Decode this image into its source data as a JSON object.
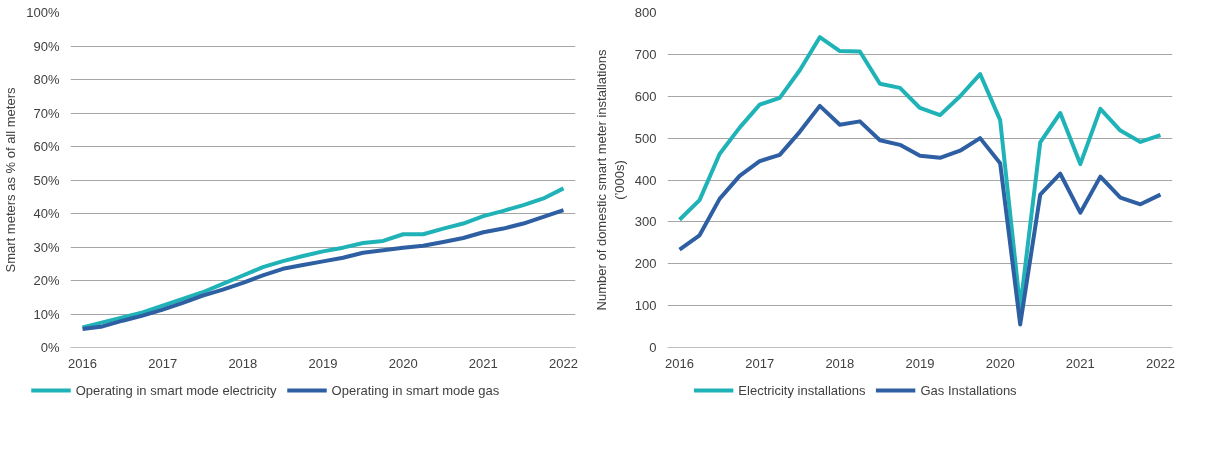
{
  "chart_data": [
    {
      "type": "line",
      "ylabel": "Smart meters as % of all meters",
      "x": [
        2016,
        2016.25,
        2016.5,
        2016.75,
        2017,
        2017.25,
        2017.5,
        2017.75,
        2018,
        2018.25,
        2018.5,
        2018.75,
        2019,
        2019.25,
        2019.5,
        2019.75,
        2020,
        2020.25,
        2020.5,
        2020.75,
        2021,
        2021.25,
        2021.5,
        2021.75,
        2022
      ],
      "series": [
        {
          "name": "Operating in smart mode electricity",
          "color": "#1fb3b8",
          "values": [
            6,
            7.5,
            9,
            10.5,
            12.5,
            14.5,
            16.5,
            19,
            21.5,
            24,
            25.8,
            27.3,
            28.7,
            29.8,
            31.2,
            31.8,
            33.8,
            33.8,
            35.5,
            37,
            39.2,
            40.8,
            42.5,
            44.5,
            47.5
          ]
        },
        {
          "name": "Operating in smart mode gas",
          "color": "#2e5fa3",
          "values": [
            5.5,
            6.3,
            8,
            9.5,
            11.3,
            13.3,
            15.5,
            17.3,
            19.3,
            21.5,
            23.5,
            24.6,
            25.7,
            26.8,
            28.3,
            29,
            29.8,
            30.4,
            31.5,
            32.7,
            34.4,
            35.5,
            37,
            39,
            41
          ]
        }
      ],
      "xlim": [
        2015.85,
        2022.15
      ],
      "xticks": [
        2016,
        2017,
        2018,
        2019,
        2020,
        2021,
        2022
      ],
      "ylim": [
        0,
        100
      ],
      "yticks": [
        {
          "value": 0,
          "label": "0%"
        },
        {
          "value": 10,
          "label": "10%"
        },
        {
          "value": 20,
          "label": "20%"
        },
        {
          "value": 30,
          "label": "30%"
        },
        {
          "value": 40,
          "label": "40%"
        },
        {
          "value": 50,
          "label": "50%"
        },
        {
          "value": 60,
          "label": "60%"
        },
        {
          "value": 70,
          "label": "70%"
        },
        {
          "value": 80,
          "label": "80%"
        },
        {
          "value": 90,
          "label": "90%"
        },
        {
          "value": 100,
          "label": "100%"
        }
      ],
      "grid": "y",
      "legend": "bottom",
      "marker": "none",
      "line_style": "solid"
    },
    {
      "type": "line",
      "ylabel": "Number of domestic smart meter installations\n(’000s)",
      "x": [
        2016,
        2016.25,
        2016.5,
        2016.75,
        2017,
        2017.25,
        2017.5,
        2017.75,
        2018,
        2018.25,
        2018.5,
        2018.75,
        2019,
        2019.25,
        2019.5,
        2019.75,
        2020,
        2020.25,
        2020.5,
        2020.75,
        2021,
        2021.25,
        2021.5,
        2021.75,
        2022
      ],
      "series": [
        {
          "name": "Electricity installations",
          "color": "#1fb3b8",
          "values": [
            305,
            352,
            462,
            525,
            580,
            596,
            662,
            741,
            708,
            707,
            630,
            620,
            572,
            555,
            600,
            653,
            543,
            95,
            490,
            560,
            438,
            570,
            518,
            491,
            507
          ]
        },
        {
          "name": "Gas Installations",
          "color": "#2e5fa3",
          "values": [
            234,
            268,
            355,
            410,
            445,
            460,
            515,
            577,
            532,
            540,
            495,
            484,
            458,
            453,
            470,
            500,
            440,
            55,
            365,
            415,
            322,
            408,
            358,
            342,
            365
          ]
        }
      ],
      "xlim": [
        2015.85,
        2022.15
      ],
      "xticks": [
        2016,
        2017,
        2018,
        2019,
        2020,
        2021,
        2022
      ],
      "ylim": [
        0,
        800
      ],
      "yticks": [
        0,
        100,
        200,
        300,
        400,
        500,
        600,
        700,
        800
      ],
      "grid": "y",
      "legend": "bottom",
      "marker": "none",
      "line_style": "solid"
    }
  ]
}
